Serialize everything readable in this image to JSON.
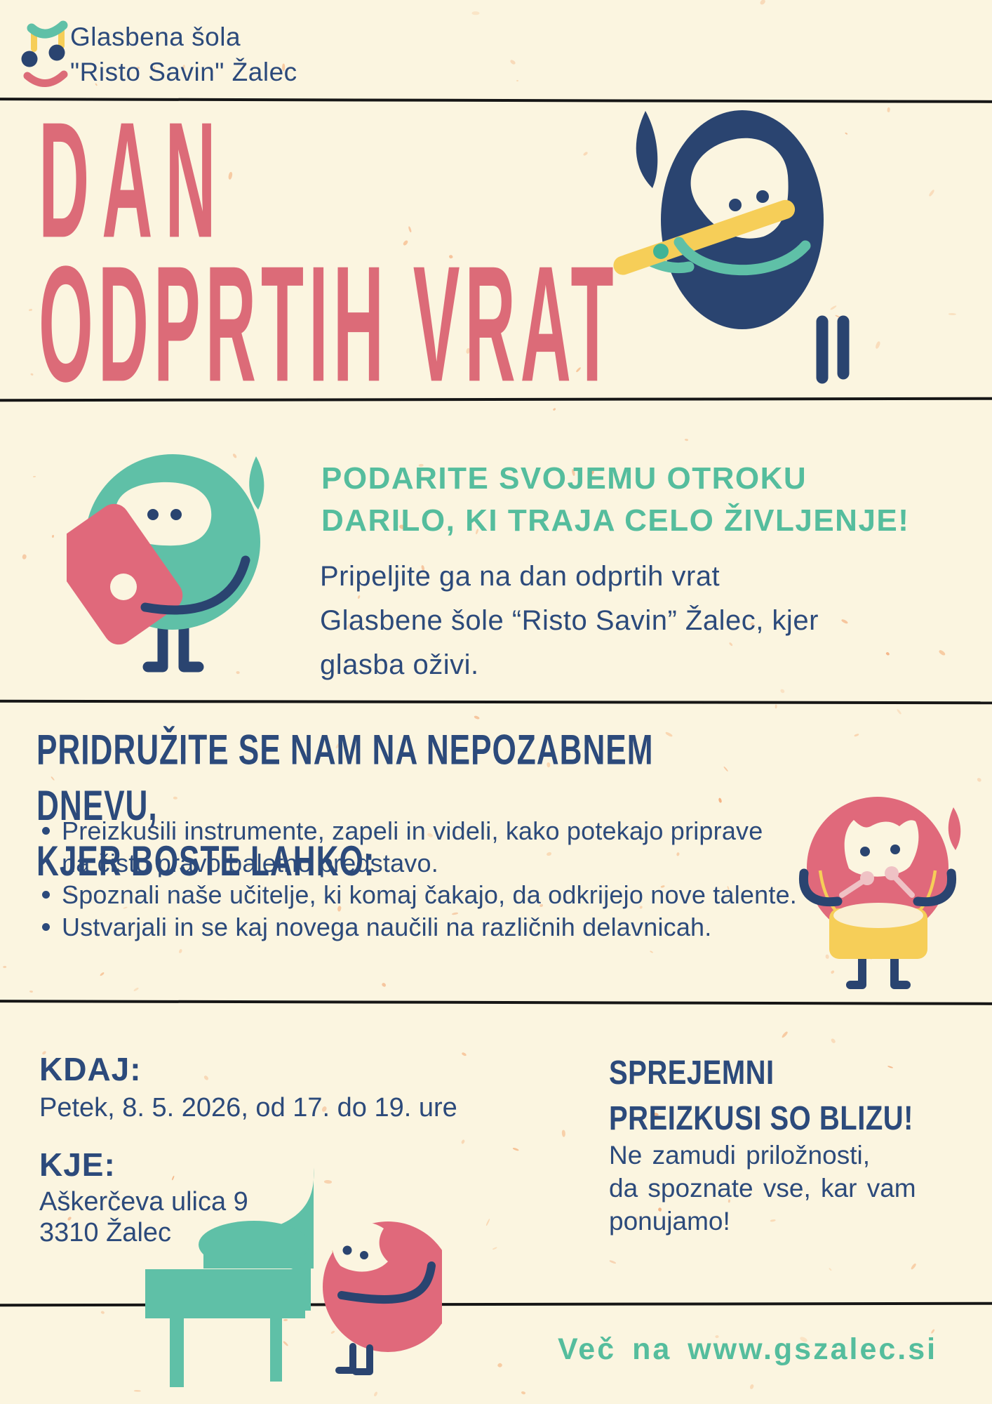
{
  "logo": {
    "name": "Glasbena šola\n\"Risto Savin\" Žalec"
  },
  "title": {
    "line1": "DAN",
    "line2": "ODPRTIH VRAT"
  },
  "gift": {
    "headline": "PODARITE SVOJEMU OTROKU\nDARILO, KI TRAJA CELO ŽIVLJENJE!",
    "body": "Pripeljite ga na dan odprtih vrat\nGlasbene šole “Risto Savin” Žalec, kjer\nglasba oživi."
  },
  "join": {
    "heading": "PRIDRUŽITE SE NAM NA NEPOZABNEM DNEVU,\nKJER BOSTE LAHKO:",
    "bullets": [
      "Preizkusili instrumente, zapeli in videli, kako potekajo priprave\nna čisto pravo baletno predstavo.",
      "Spoznali naše učitelje, ki komaj čakajo, da odkrijejo nove talente.",
      "Ustvarjali in se kaj novega naučili na različnih delavnicah."
    ]
  },
  "details": {
    "when_label": "KDAJ:",
    "when_value": "Petek, 8. 5. 2026, od 17. do 19. ure",
    "where_label": "KJE:",
    "where_value": "Aškerčeva ulica 9\n3310 Žalec"
  },
  "tryouts": {
    "heading": "SPREJEMNI\nPREIZKUSI SO BLIZU!",
    "body": "Ne zamudi priložnosti,\nda spoznate vse, kar vam\nponujamo!"
  },
  "footer": {
    "more_info": "Več na www.gszalec.si"
  },
  "colors": {
    "background": "#FBF5E0",
    "navy": "#2C4A7B",
    "red": "#DC6B78",
    "teal": "#55BD9D",
    "yellow": "#F6CE58",
    "divider": "#161616"
  }
}
